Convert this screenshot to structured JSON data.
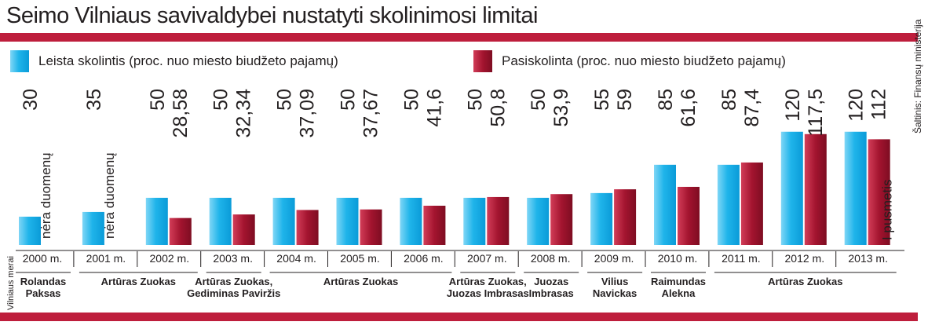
{
  "title": "Seimo Vilniaus savivaldybei nustatyti skolinimosi limitai",
  "source": "Šaltinis: Finansų ministerija",
  "mayors_label": "Vilniaus merai",
  "colors": {
    "allowed": "#1fb4ea",
    "borrowed": "#a3142f",
    "accent": "#be1e3c"
  },
  "chart_data": {
    "type": "bar",
    "categories": [
      "2000 m.",
      "2001 m.",
      "2002 m.",
      "2003 m.",
      "2004 m.",
      "2005 m.",
      "2006 m.",
      "2007 m.",
      "2008 m.",
      "2009 m.",
      "2010 m.",
      "2011 m.",
      "2012 m.",
      "2013 m."
    ],
    "series": [
      {
        "name": "Leista skolintis (proc. nuo miesto biudžeto pajamų)",
        "values": [
          30,
          35,
          50,
          50,
          50,
          50,
          50,
          50,
          50,
          55,
          85,
          85,
          120,
          120
        ],
        "labels": [
          "30",
          "35",
          "50",
          "50",
          "50",
          "50",
          "50",
          "50",
          "50",
          "55",
          "85",
          "85",
          "120",
          "120"
        ]
      },
      {
        "name": "Pasiskolinta (proc. nuo miesto biudžeto pajamų)",
        "values": [
          null,
          null,
          28.58,
          32.34,
          37.09,
          37.67,
          41.6,
          50.8,
          53.9,
          59,
          61.6,
          87.4,
          117.5,
          112
        ],
        "labels": [
          "",
          "",
          "28,58",
          "32,34",
          "37,09",
          "37,67",
          "41,6",
          "50,8",
          "53,9",
          "59",
          "61,6",
          "87,4",
          "117,5",
          "112"
        ]
      }
    ],
    "annotations": [
      "nėra duomenų",
      "nėra duomenų",
      "",
      "",
      "",
      "",
      "",
      "",
      "",
      "",
      "",
      "",
      "",
      "I pusmetis"
    ],
    "ylim": [
      0,
      120
    ],
    "grid": false,
    "legend": "top",
    "mayors": [
      {
        "name": "Rolandas Paksas",
        "from": 0,
        "to": 0,
        "lines": [
          "Rolandas",
          "Paksas"
        ]
      },
      {
        "name": "Artūras Zuokas",
        "from": 1,
        "to": 2,
        "lines": [
          "Artūras Zuokas"
        ]
      },
      {
        "name": "Artūras Zuokas, Gediminas Paviržis",
        "from": 3,
        "to": 3,
        "lines": [
          "Artūras Zuokas,",
          "Gediminas Paviržis"
        ]
      },
      {
        "name": "Artūras Zuokas",
        "from": 4,
        "to": 6,
        "lines": [
          "Artūras Zuokas"
        ]
      },
      {
        "name": "Artūras Zuokas, Juozas Imbrasas",
        "from": 7,
        "to": 7,
        "lines": [
          "Artūras Zuokas,",
          "Juozas Imbrasas"
        ]
      },
      {
        "name": "Juozas Imbrasas",
        "from": 8,
        "to": 8,
        "lines": [
          "Juozas",
          "Imbrasas"
        ]
      },
      {
        "name": "Vilius Navickas",
        "from": 9,
        "to": 9,
        "lines": [
          "Vilius",
          "Navickas"
        ]
      },
      {
        "name": "Raimundas Alekna",
        "from": 10,
        "to": 10,
        "lines": [
          "Raimundas",
          "Alekna"
        ]
      },
      {
        "name": "Artūras Zuokas",
        "from": 11,
        "to": 13,
        "lines": [
          "Artūras Zuokas"
        ]
      }
    ]
  }
}
